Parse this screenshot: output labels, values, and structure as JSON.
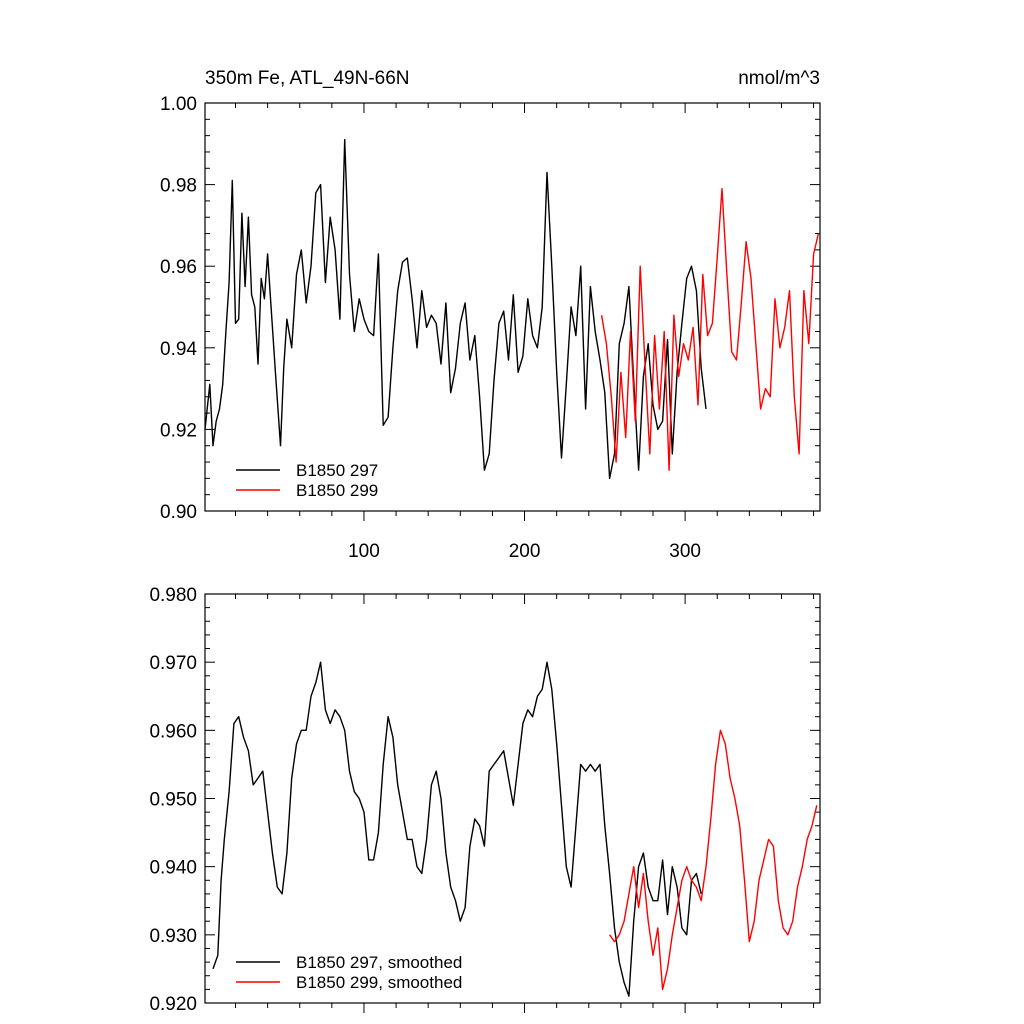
{
  "title_left": "350m Fe, ATL_49N-66N",
  "title_right": "nmol/m^3",
  "colors": {
    "series_297": "#000000",
    "series_299": "#ff0000",
    "axis": "#000000"
  },
  "chart_data": [
    {
      "type": "line",
      "title": "350m Fe, ATL_49N-66N",
      "units": "nmol/m^3",
      "xlim": [
        1,
        384
      ],
      "ylim": [
        0.9,
        1.0
      ],
      "x_ticks": [
        100,
        200,
        300
      ],
      "x_tick_labels": [
        "100",
        "200",
        "300"
      ],
      "y_ticks": [
        0.9,
        0.92,
        0.94,
        0.96,
        0.98,
        1.0
      ],
      "y_tick_labels": [
        "0.90",
        "0.92",
        "0.94",
        "0.96",
        "0.98",
        "1.00"
      ],
      "legend_position": "bottom-left",
      "series": [
        {
          "name": "B1850 297",
          "color": "#000000",
          "x": [
            1,
            4,
            6,
            8,
            10,
            12,
            14,
            16,
            18,
            20,
            22,
            24,
            26,
            28,
            30,
            32,
            34,
            36,
            38,
            40,
            42,
            45,
            48,
            50,
            52,
            55,
            58,
            61,
            64,
            67,
            70,
            73,
            76,
            79,
            82,
            85,
            88,
            91,
            94,
            97,
            100,
            103,
            106,
            109,
            112,
            115,
            118,
            121,
            124,
            127,
            130,
            133,
            136,
            139,
            142,
            145,
            148,
            151,
            154,
            157,
            160,
            163,
            166,
            169,
            172,
            175,
            178,
            181,
            184,
            187,
            190,
            193,
            196,
            199,
            202,
            205,
            208,
            211,
            214,
            217,
            220,
            223,
            226,
            229,
            232,
            235,
            238,
            241,
            244,
            247,
            250,
            253,
            256,
            259,
            262,
            265,
            268,
            271,
            274,
            277,
            280,
            283,
            286,
            289,
            292,
            295,
            298,
            301,
            304,
            307,
            310,
            313
          ],
          "values": [
            0.92,
            0.931,
            0.916,
            0.922,
            0.925,
            0.931,
            0.944,
            0.956,
            0.981,
            0.946,
            0.947,
            0.973,
            0.955,
            0.972,
            0.953,
            0.95,
            0.936,
            0.957,
            0.952,
            0.963,
            0.951,
            0.933,
            0.916,
            0.935,
            0.947,
            0.94,
            0.958,
            0.964,
            0.951,
            0.96,
            0.978,
            0.98,
            0.956,
            0.972,
            0.964,
            0.947,
            0.991,
            0.958,
            0.944,
            0.952,
            0.947,
            0.944,
            0.943,
            0.963,
            0.921,
            0.923,
            0.94,
            0.954,
            0.961,
            0.962,
            0.952,
            0.94,
            0.954,
            0.945,
            0.948,
            0.946,
            0.936,
            0.951,
            0.929,
            0.935,
            0.946,
            0.951,
            0.937,
            0.943,
            0.928,
            0.91,
            0.914,
            0.932,
            0.946,
            0.949,
            0.937,
            0.953,
            0.934,
            0.938,
            0.952,
            0.943,
            0.94,
            0.95,
            0.983,
            0.96,
            0.934,
            0.913,
            0.931,
            0.95,
            0.943,
            0.96,
            0.925,
            0.955,
            0.944,
            0.937,
            0.929,
            0.908,
            0.914,
            0.941,
            0.946,
            0.955,
            0.932,
            0.91,
            0.933,
            0.941,
            0.926,
            0.92,
            0.922,
            0.942,
            0.914,
            0.934,
            0.946,
            0.957,
            0.96,
            0.954,
            0.935,
            0.925
          ]
        },
        {
          "name": "B1850 299",
          "color": "#ff0000",
          "x": [
            248,
            251,
            254,
            257,
            260,
            263,
            266,
            269,
            272,
            275,
            278,
            281,
            284,
            287,
            290,
            293,
            296,
            299,
            302,
            305,
            308,
            311,
            314,
            317,
            320,
            323,
            326,
            329,
            332,
            335,
            338,
            341,
            344,
            347,
            350,
            353,
            356,
            359,
            362,
            365,
            368,
            371,
            374,
            377,
            380,
            383
          ],
          "values": [
            0.948,
            0.941,
            0.928,
            0.912,
            0.934,
            0.918,
            0.944,
            0.922,
            0.96,
            0.936,
            0.914,
            0.943,
            0.925,
            0.944,
            0.91,
            0.948,
            0.933,
            0.941,
            0.937,
            0.945,
            0.926,
            0.958,
            0.943,
            0.946,
            0.962,
            0.979,
            0.958,
            0.939,
            0.937,
            0.951,
            0.966,
            0.957,
            0.941,
            0.925,
            0.93,
            0.928,
            0.952,
            0.94,
            0.945,
            0.954,
            0.928,
            0.914,
            0.954,
            0.941,
            0.963,
            0.968
          ]
        }
      ]
    },
    {
      "type": "line",
      "title": "",
      "xlim": [
        1,
        384
      ],
      "ylim": [
        0.92,
        0.98
      ],
      "x_ticks": [
        100,
        200,
        300
      ],
      "y_ticks": [
        0.92,
        0.93,
        0.94,
        0.95,
        0.96,
        0.97,
        0.98
      ],
      "y_tick_labels": [
        "0.920",
        "0.930",
        "0.940",
        "0.950",
        "0.960",
        "0.970",
        "0.980"
      ],
      "legend_position": "bottom-left",
      "series": [
        {
          "name": "B1850 297, smoothed",
          "color": "#000000",
          "x": [
            6,
            9,
            11,
            13,
            16,
            19,
            22,
            25,
            28,
            31,
            34,
            37,
            40,
            43,
            46,
            49,
            52,
            55,
            58,
            61,
            64,
            67,
            70,
            73,
            76,
            79,
            82,
            85,
            88,
            91,
            94,
            97,
            100,
            103,
            106,
            109,
            112,
            115,
            118,
            121,
            124,
            127,
            130,
            133,
            136,
            139,
            142,
            145,
            148,
            151,
            154,
            157,
            160,
            163,
            166,
            169,
            172,
            175,
            178,
            181,
            184,
            187,
            190,
            193,
            196,
            199,
            202,
            205,
            208,
            211,
            214,
            217,
            220,
            223,
            226,
            229,
            232,
            235,
            238,
            241,
            244,
            247,
            250,
            253,
            256,
            259,
            262,
            265,
            268,
            271,
            274,
            277,
            280,
            283,
            286,
            289,
            292,
            295,
            298,
            301,
            304,
            307,
            310
          ],
          "values": [
            0.925,
            0.927,
            0.938,
            0.944,
            0.951,
            0.961,
            0.962,
            0.959,
            0.957,
            0.952,
            0.953,
            0.954,
            0.948,
            0.942,
            0.937,
            0.936,
            0.942,
            0.953,
            0.958,
            0.96,
            0.96,
            0.965,
            0.967,
            0.97,
            0.963,
            0.961,
            0.963,
            0.962,
            0.96,
            0.954,
            0.951,
            0.95,
            0.948,
            0.941,
            0.941,
            0.945,
            0.955,
            0.962,
            0.959,
            0.952,
            0.948,
            0.944,
            0.944,
            0.94,
            0.939,
            0.944,
            0.952,
            0.954,
            0.95,
            0.942,
            0.937,
            0.935,
            0.932,
            0.934,
            0.943,
            0.947,
            0.946,
            0.943,
            0.954,
            0.955,
            0.956,
            0.957,
            0.953,
            0.949,
            0.955,
            0.961,
            0.963,
            0.962,
            0.965,
            0.966,
            0.97,
            0.966,
            0.958,
            0.949,
            0.94,
            0.937,
            0.946,
            0.955,
            0.954,
            0.955,
            0.954,
            0.955,
            0.946,
            0.939,
            0.931,
            0.926,
            0.923,
            0.921,
            0.932,
            0.94,
            0.942,
            0.937,
            0.935,
            0.935,
            0.941,
            0.933,
            0.94,
            0.937,
            0.931,
            0.93,
            0.938,
            0.939,
            0.936
          ]
        },
        {
          "name": "B1850 299, smoothed",
          "color": "#ff0000",
          "x": [
            253,
            256,
            259,
            262,
            265,
            268,
            271,
            274,
            277,
            280,
            283,
            286,
            289,
            292,
            295,
            298,
            301,
            304,
            307,
            310,
            313,
            316,
            319,
            322,
            325,
            328,
            331,
            334,
            337,
            340,
            343,
            346,
            349,
            352,
            355,
            358,
            361,
            364,
            367,
            370,
            373,
            376,
            379,
            382
          ],
          "values": [
            0.93,
            0.929,
            0.93,
            0.932,
            0.936,
            0.94,
            0.934,
            0.939,
            0.932,
            0.927,
            0.931,
            0.922,
            0.925,
            0.93,
            0.934,
            0.938,
            0.94,
            0.938,
            0.937,
            0.935,
            0.94,
            0.947,
            0.955,
            0.96,
            0.958,
            0.953,
            0.95,
            0.946,
            0.938,
            0.929,
            0.932,
            0.938,
            0.941,
            0.944,
            0.943,
            0.935,
            0.931,
            0.93,
            0.932,
            0.937,
            0.94,
            0.944,
            0.946,
            0.949
          ]
        }
      ]
    }
  ]
}
